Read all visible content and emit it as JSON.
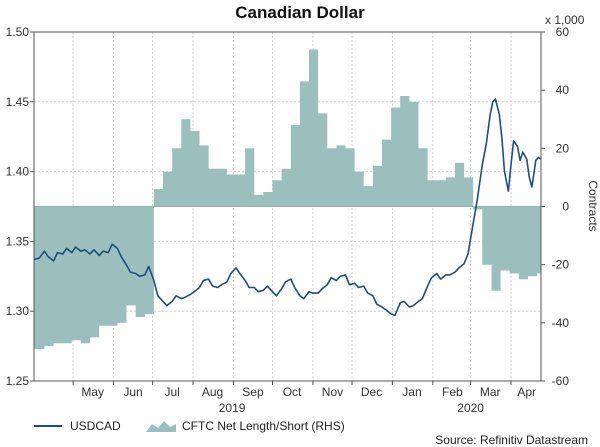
{
  "chart_data": {
    "type": "line+area",
    "title": "Canadian Dollar",
    "left_axis": {
      "min": 1.25,
      "max": 1.5,
      "ticks": [
        "1.50",
        "1.45",
        "1.40",
        "1.35",
        "1.30",
        "1.25"
      ],
      "tick_values": [
        1.5,
        1.45,
        1.4,
        1.35,
        1.3,
        1.25
      ]
    },
    "right_axis": {
      "label": "Contracts",
      "unit_note": "x 1,000",
      "min": -60,
      "max": 60,
      "ticks": [
        "60",
        "40",
        "20",
        "0",
        "-20",
        "-40",
        "-60"
      ],
      "tick_values": [
        60,
        40,
        20,
        0,
        -20,
        -40,
        -60
      ]
    },
    "x_axis": {
      "start": "2019-04-01",
      "end": "2020-04-24",
      "months": [
        {
          "label": "May",
          "date": "2019-05-16"
        },
        {
          "label": "Jun",
          "date": "2019-06-16"
        },
        {
          "label": "Jul",
          "date": "2019-07-16"
        },
        {
          "label": "Aug",
          "date": "2019-08-16"
        },
        {
          "label": "Sep",
          "date": "2019-09-16"
        },
        {
          "label": "Oct",
          "date": "2019-10-16"
        },
        {
          "label": "Nov",
          "date": "2019-11-16"
        },
        {
          "label": "Dec",
          "date": "2019-12-16"
        },
        {
          "label": "Jan",
          "date": "2020-01-16"
        },
        {
          "label": "Feb",
          "date": "2020-02-16"
        },
        {
          "label": "Mar",
          "date": "2020-03-16"
        },
        {
          "label": "Apr",
          "date": "2020-04-13"
        }
      ],
      "boundaries": [
        "2019-05-01",
        "2019-06-01",
        "2019-07-01",
        "2019-08-01",
        "2019-09-01",
        "2019-10-01",
        "2019-11-01",
        "2019-12-01",
        "2020-01-01",
        "2020-02-01",
        "2020-03-01",
        "2020-04-01"
      ],
      "years": [
        {
          "label": "2019",
          "date": "2019-08-31"
        },
        {
          "label": "2020",
          "date": "2020-03-01"
        }
      ]
    },
    "series": [
      {
        "name": "USDCAD",
        "axis": "left",
        "color": "#1f4e79",
        "points": [
          [
            "2019-04-01",
            1.337
          ],
          [
            "2019-04-05",
            1.338
          ],
          [
            "2019-04-09",
            1.343
          ],
          [
            "2019-04-12",
            1.339
          ],
          [
            "2019-04-16",
            1.336
          ],
          [
            "2019-04-19",
            1.342
          ],
          [
            "2019-04-23",
            1.341
          ],
          [
            "2019-04-26",
            1.345
          ],
          [
            "2019-04-30",
            1.342
          ],
          [
            "2019-05-03",
            1.346
          ],
          [
            "2019-05-07",
            1.343
          ],
          [
            "2019-05-10",
            1.344
          ],
          [
            "2019-05-14",
            1.341
          ],
          [
            "2019-05-17",
            1.344
          ],
          [
            "2019-05-21",
            1.34
          ],
          [
            "2019-05-24",
            1.343
          ],
          [
            "2019-05-28",
            1.342
          ],
          [
            "2019-05-31",
            1.348
          ],
          [
            "2019-06-04",
            1.345
          ],
          [
            "2019-06-07",
            1.339
          ],
          [
            "2019-06-11",
            1.333
          ],
          [
            "2019-06-14",
            1.328
          ],
          [
            "2019-06-18",
            1.327
          ],
          [
            "2019-06-21",
            1.325
          ],
          [
            "2019-06-25",
            1.326
          ],
          [
            "2019-06-28",
            1.332
          ],
          [
            "2019-07-02",
            1.322
          ],
          [
            "2019-07-05",
            1.311
          ],
          [
            "2019-07-09",
            1.307
          ],
          [
            "2019-07-12",
            1.304
          ],
          [
            "2019-07-16",
            1.307
          ],
          [
            "2019-07-19",
            1.311
          ],
          [
            "2019-07-23",
            1.309
          ],
          [
            "2019-07-26",
            1.31
          ],
          [
            "2019-07-30",
            1.312
          ],
          [
            "2019-08-02",
            1.314
          ],
          [
            "2019-08-06",
            1.317
          ],
          [
            "2019-08-09",
            1.322
          ],
          [
            "2019-08-13",
            1.323
          ],
          [
            "2019-08-16",
            1.318
          ],
          [
            "2019-08-20",
            1.317
          ],
          [
            "2019-08-23",
            1.319
          ],
          [
            "2019-08-27",
            1.321
          ],
          [
            "2019-08-30",
            1.327
          ],
          [
            "2019-09-03",
            1.331
          ],
          [
            "2019-09-06",
            1.327
          ],
          [
            "2019-09-10",
            1.322
          ],
          [
            "2019-09-13",
            1.317
          ],
          [
            "2019-09-17",
            1.317
          ],
          [
            "2019-09-20",
            1.314
          ],
          [
            "2019-09-24",
            1.315
          ],
          [
            "2019-09-27",
            1.318
          ],
          [
            "2019-10-01",
            1.314
          ],
          [
            "2019-10-04",
            1.311
          ],
          [
            "2019-10-08",
            1.316
          ],
          [
            "2019-10-11",
            1.321
          ],
          [
            "2019-10-15",
            1.323
          ],
          [
            "2019-10-18",
            1.317
          ],
          [
            "2019-10-22",
            1.311
          ],
          [
            "2019-10-25",
            1.309
          ],
          [
            "2019-10-29",
            1.314
          ],
          [
            "2019-11-01",
            1.313
          ],
          [
            "2019-11-05",
            1.313
          ],
          [
            "2019-11-08",
            1.316
          ],
          [
            "2019-11-12",
            1.319
          ],
          [
            "2019-11-15",
            1.324
          ],
          [
            "2019-11-19",
            1.322
          ],
          [
            "2019-11-22",
            1.325
          ],
          [
            "2019-11-26",
            1.326
          ],
          [
            "2019-11-29",
            1.319
          ],
          [
            "2019-12-03",
            1.32
          ],
          [
            "2019-12-06",
            1.317
          ],
          [
            "2019-12-10",
            1.318
          ],
          [
            "2019-12-13",
            1.313
          ],
          [
            "2019-12-17",
            1.311
          ],
          [
            "2019-12-20",
            1.305
          ],
          [
            "2019-12-24",
            1.303
          ],
          [
            "2019-12-27",
            1.301
          ],
          [
            "2019-12-31",
            1.298
          ],
          [
            "2020-01-03",
            1.297
          ],
          [
            "2020-01-07",
            1.306
          ],
          [
            "2020-01-10",
            1.307
          ],
          [
            "2020-01-14",
            1.303
          ],
          [
            "2020-01-17",
            1.304
          ],
          [
            "2020-01-21",
            1.307
          ],
          [
            "2020-01-24",
            1.309
          ],
          [
            "2020-01-28",
            1.318
          ],
          [
            "2020-01-31",
            1.324
          ],
          [
            "2020-02-04",
            1.327
          ],
          [
            "2020-02-07",
            1.323
          ],
          [
            "2020-02-11",
            1.326
          ],
          [
            "2020-02-14",
            1.326
          ],
          [
            "2020-02-18",
            1.328
          ],
          [
            "2020-02-21",
            1.331
          ],
          [
            "2020-02-25",
            1.334
          ],
          [
            "2020-02-28",
            1.341
          ],
          [
            "2020-03-03",
            1.363
          ],
          [
            "2020-03-06",
            1.379
          ],
          [
            "2020-03-10",
            1.405
          ],
          [
            "2020-03-13",
            1.42
          ],
          [
            "2020-03-16",
            1.441
          ],
          [
            "2020-03-18",
            1.45
          ],
          [
            "2020-03-20",
            1.452
          ],
          [
            "2020-03-23",
            1.441
          ],
          [
            "2020-03-25",
            1.424
          ],
          [
            "2020-03-27",
            1.4
          ],
          [
            "2020-03-30",
            1.386
          ],
          [
            "2020-04-01",
            1.405
          ],
          [
            "2020-04-03",
            1.422
          ],
          [
            "2020-04-06",
            1.418
          ],
          [
            "2020-04-08",
            1.408
          ],
          [
            "2020-04-10",
            1.414
          ],
          [
            "2020-04-13",
            1.409
          ],
          [
            "2020-04-15",
            1.396
          ],
          [
            "2020-04-17",
            1.389
          ],
          [
            "2020-04-20",
            1.408
          ],
          [
            "2020-04-22",
            1.41
          ],
          [
            "2020-04-24",
            1.409
          ]
        ]
      },
      {
        "name": "CFTC Net Length/Short (RHS)",
        "axis": "right",
        "color": "#9bbfbd",
        "points": [
          [
            "2019-04-01",
            -49
          ],
          [
            "2019-04-09",
            -48
          ],
          [
            "2019-04-16",
            -47
          ],
          [
            "2019-04-23",
            -47
          ],
          [
            "2019-04-30",
            -46
          ],
          [
            "2019-05-07",
            -47
          ],
          [
            "2019-05-14",
            -45
          ],
          [
            "2019-05-21",
            -41
          ],
          [
            "2019-05-28",
            -41
          ],
          [
            "2019-06-04",
            -40
          ],
          [
            "2019-06-11",
            -34
          ],
          [
            "2019-06-18",
            -38
          ],
          [
            "2019-06-25",
            -37
          ],
          [
            "2019-07-02",
            6
          ],
          [
            "2019-07-09",
            12
          ],
          [
            "2019-07-16",
            20
          ],
          [
            "2019-07-23",
            30
          ],
          [
            "2019-07-30",
            26
          ],
          [
            "2019-08-06",
            21
          ],
          [
            "2019-08-13",
            13
          ],
          [
            "2019-08-20",
            13
          ],
          [
            "2019-08-27",
            11
          ],
          [
            "2019-09-03",
            11
          ],
          [
            "2019-09-10",
            20
          ],
          [
            "2019-09-17",
            4
          ],
          [
            "2019-09-24",
            5
          ],
          [
            "2019-10-01",
            9
          ],
          [
            "2019-10-08",
            13
          ],
          [
            "2019-10-15",
            28
          ],
          [
            "2019-10-22",
            43
          ],
          [
            "2019-10-29",
            54
          ],
          [
            "2019-11-05",
            32
          ],
          [
            "2019-11-12",
            20
          ],
          [
            "2019-11-19",
            21
          ],
          [
            "2019-11-26",
            20
          ],
          [
            "2019-12-03",
            12
          ],
          [
            "2019-12-10",
            7
          ],
          [
            "2019-12-17",
            14
          ],
          [
            "2019-12-24",
            23
          ],
          [
            "2019-12-31",
            34
          ],
          [
            "2020-01-07",
            38
          ],
          [
            "2020-01-14",
            36
          ],
          [
            "2020-01-21",
            20
          ],
          [
            "2020-01-28",
            9
          ],
          [
            "2020-02-04",
            9
          ],
          [
            "2020-02-11",
            10
          ],
          [
            "2020-02-18",
            15
          ],
          [
            "2020-02-25",
            10
          ],
          [
            "2020-03-03",
            -1
          ],
          [
            "2020-03-10",
            -20
          ],
          [
            "2020-03-17",
            -29
          ],
          [
            "2020-03-24",
            -22
          ],
          [
            "2020-03-31",
            -23
          ],
          [
            "2020-04-07",
            -25
          ],
          [
            "2020-04-14",
            -24
          ],
          [
            "2020-04-21",
            -23
          ],
          [
            "2020-04-24",
            -23
          ]
        ]
      }
    ],
    "legend": [
      {
        "label": "USDCAD"
      },
      {
        "label": "CFTC Net Length/Short (RHS)"
      }
    ],
    "source": "Source: Refinitiv Datastream"
  }
}
